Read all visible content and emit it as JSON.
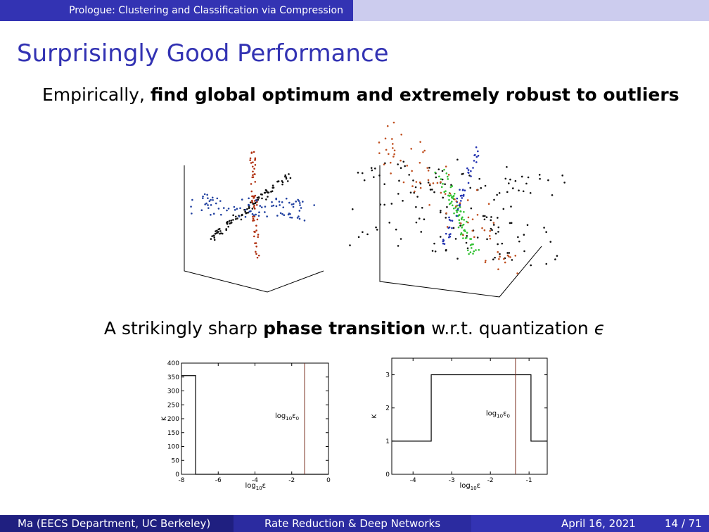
{
  "header": {
    "section": "Prologue: Clustering and Classification via Compression"
  },
  "slide": {
    "title": "Surprisingly Good Performance",
    "line1": {
      "plain": "Empirically, ",
      "bold": "find global optimum and extremely robust to outliers"
    },
    "line2": {
      "plain1": "A strikingly sharp ",
      "bold": "phase transition",
      "plain2": " w.r.t. quantization ",
      "symbol": "ϵ"
    }
  },
  "chart_data": [
    {
      "type": "line",
      "y_label": "K",
      "x_label": {
        "base": "log",
        "sub": "10",
        "var": "ε"
      },
      "annotation": {
        "base": "log",
        "sub": "10",
        "var": "ε",
        "sub2": "0"
      },
      "x": [
        -8,
        -7.23,
        -7.23,
        0
      ],
      "series": [
        {
          "values": [
            355,
            355,
            0,
            0
          ],
          "color": "#000000"
        }
      ],
      "vline": -1.3,
      "xlim": [
        -8,
        0
      ],
      "xticks": [
        -8,
        -6,
        -4,
        -2,
        0
      ],
      "ylim": [
        0,
        400
      ],
      "yticks": [
        0,
        50,
        100,
        150,
        200,
        250,
        300,
        350,
        400
      ]
    },
    {
      "type": "line",
      "y_label": "K",
      "x_label": {
        "base": "log",
        "sub": "10",
        "var": "ε"
      },
      "annotation": {
        "base": "log",
        "sub": "10",
        "var": "ε",
        "sub2": "0"
      },
      "x": [
        -4.55,
        -3.53,
        -3.53,
        -0.95,
        -0.95,
        -0.53
      ],
      "series": [
        {
          "values": [
            1,
            1,
            3,
            3,
            1,
            1
          ],
          "color": "#000000"
        }
      ],
      "vline": -1.35,
      "xlim": [
        -4.55,
        -0.53
      ],
      "xticks": [
        -4,
        -3,
        -2,
        -1
      ],
      "ylim": [
        0,
        3.5
      ],
      "yticks": [
        0,
        1,
        2,
        3
      ]
    }
  ],
  "footer": {
    "author": "Ma  (EECS Department, UC Berkeley)",
    "talk": "Rate Reduction & Deep Networks",
    "date": "April 16, 2021",
    "page": "14 / 71"
  }
}
